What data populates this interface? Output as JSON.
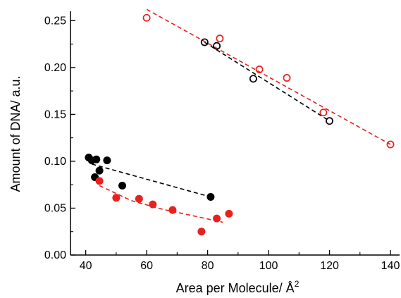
{
  "chart_data": {
    "type": "scatter",
    "title": "",
    "xlabel": "Area per Molecule/ Å",
    "xlabel_superscript": "2",
    "ylabel": "Amount of DNA/ a.u.",
    "xlim": [
      35,
      143
    ],
    "ylim": [
      0,
      0.26
    ],
    "x_ticks": [
      40,
      60,
      80,
      100,
      120,
      140
    ],
    "y_ticks": [
      0.0,
      0.05,
      0.1,
      0.15,
      0.2,
      0.25
    ],
    "x_tick_labels": [
      "40",
      "60",
      "80",
      "100",
      "120",
      "140"
    ],
    "y_tick_labels": [
      "0.00",
      "0.05",
      "0.10",
      "0.15",
      "0.20",
      "0.25"
    ],
    "grid": false,
    "legend": "none",
    "series": [
      {
        "marker": "open-circle",
        "color": "#000000",
        "points": [
          [
            79,
            0.227
          ],
          [
            83,
            0.223
          ],
          [
            95,
            0.188
          ],
          [
            120,
            0.143
          ]
        ],
        "fit_line": [
          [
            79,
            0.227
          ],
          [
            120,
            0.143
          ]
        ]
      },
      {
        "marker": "open-circle",
        "color": "#e8201e",
        "points": [
          [
            60,
            0.253
          ],
          [
            84,
            0.231
          ],
          [
            97,
            0.198
          ],
          [
            106,
            0.189
          ],
          [
            118,
            0.152
          ],
          [
            140,
            0.118
          ]
        ],
        "fit_line": [
          [
            60,
            0.262
          ],
          [
            140,
            0.118
          ]
        ]
      },
      {
        "marker": "filled-circle",
        "color": "#000000",
        "points": [
          [
            41,
            0.104
          ],
          [
            42,
            0.101
          ],
          [
            43,
            0.083
          ],
          [
            43.5,
            0.102
          ],
          [
            44.5,
            0.09
          ],
          [
            47,
            0.101
          ],
          [
            52,
            0.074
          ],
          [
            81,
            0.062
          ]
        ],
        "fit_line": [
          [
            42,
            0.097
          ],
          [
            81,
            0.062
          ]
        ]
      },
      {
        "marker": "filled-circle",
        "color": "#e8201e",
        "points": [
          [
            44.5,
            0.079
          ],
          [
            50,
            0.061
          ],
          [
            57.5,
            0.06
          ],
          [
            62,
            0.054
          ],
          [
            68.5,
            0.048
          ],
          [
            78,
            0.025
          ],
          [
            83,
            0.039
          ],
          [
            87,
            0.044
          ]
        ],
        "fit_line": [
          [
            44.5,
            0.074
          ],
          [
            55,
            0.058
          ],
          [
            65,
            0.049
          ],
          [
            75,
            0.042
          ],
          [
            85,
            0.035
          ]
        ]
      }
    ]
  }
}
